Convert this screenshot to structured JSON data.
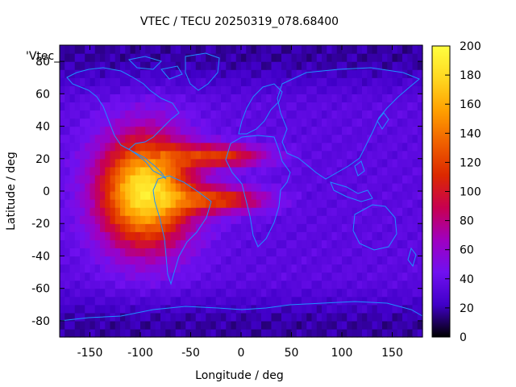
{
  "chart_data": {
    "type": "heatmap",
    "title": "VTEC / TECU 20250319_078.68400",
    "xlabel": "Longitude / deg",
    "ylabel": "Latitude / deg",
    "series_label": "'Vtec_",
    "xlim": [
      -180,
      180
    ],
    "ylim": [
      -90,
      90
    ],
    "x_ticks": [
      -150,
      -100,
      -50,
      0,
      50,
      100,
      150
    ],
    "y_ticks": [
      -80,
      -60,
      -40,
      -20,
      0,
      20,
      40,
      60,
      80
    ],
    "colorbar": {
      "min": 0,
      "max": 200,
      "ticks": [
        0,
        20,
        40,
        60,
        80,
        100,
        120,
        140,
        160,
        180,
        200
      ],
      "colormap": [
        "#000000",
        "#4000c8",
        "#7010f0",
        "#a000c0",
        "#c80050",
        "#dc2800",
        "#f06000",
        "#ffa000",
        "#ffd820",
        "#ffff40"
      ]
    },
    "features": {
      "background_level": 35,
      "peak": {
        "lon": -95,
        "lat": 0,
        "value": 190
      },
      "anomaly_crest_value": 120,
      "high_latitude_low_value": 18
    }
  }
}
